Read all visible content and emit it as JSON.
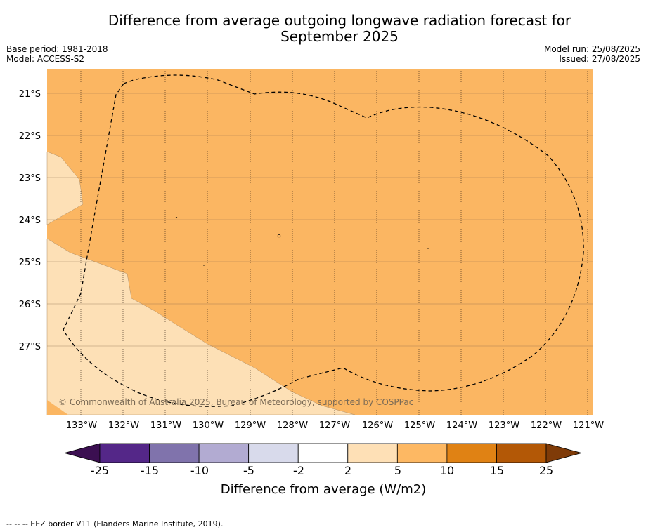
{
  "title": {
    "line1": "Difference from average outgoing longwave radiation forecast for",
    "line2": "September 2025"
  },
  "meta_left": {
    "base_period": "Base period: 1981-2018",
    "model": "Model: ACCESS-S2"
  },
  "meta_right": {
    "model_run": "Model run: 25/08/2025",
    "issued": "Issued: 27/08/2025"
  },
  "map": {
    "lat_labels": [
      "21°S",
      "22°S",
      "23°S",
      "24°S",
      "25°S",
      "26°S",
      "27°S"
    ],
    "lon_labels": [
      "133°W",
      "132°W",
      "131°W",
      "130°W",
      "129°W",
      "128°W",
      "127°W",
      "126°W",
      "125°W",
      "124°W",
      "123°W",
      "122°W",
      "121°W"
    ],
    "colors": {
      "bg_5_10": "#fbb662",
      "zone_2_5": "#fde0b6"
    },
    "copyright": "© Commonwealth of Australia 2025, Bureau of Meteorology, supported by COSPPac"
  },
  "colorbar": {
    "title": "Difference from average (W/m2)",
    "tick_labels": [
      "-25",
      "-15",
      "-10",
      "-5",
      "-2",
      "2",
      "5",
      "10",
      "15",
      "25"
    ],
    "colors": [
      "#3b0f51",
      "#542788",
      "#8073ac",
      "#b2abd2",
      "#d8daeb",
      "#ffffff",
      "#fee0b6",
      "#fdb863",
      "#e08214",
      "#b35806",
      "#7f3b08"
    ]
  },
  "footnote": "--  --  -- EEZ border V11 (Flanders Marine Institute, 2019)."
}
